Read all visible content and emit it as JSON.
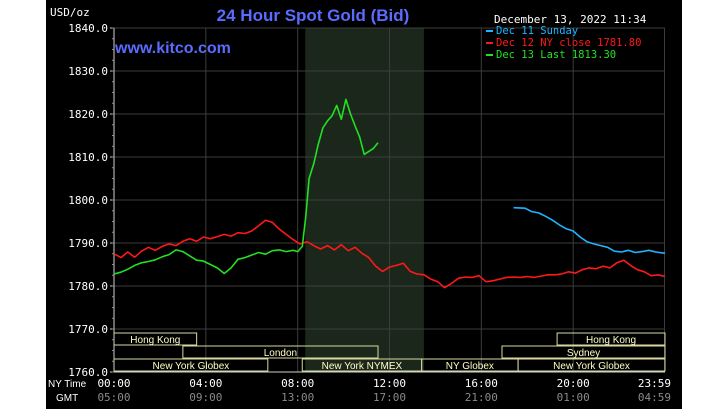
{
  "chart_data": {
    "type": "line",
    "title": "24 Hour Spot Gold (Bid)",
    "watermark": "www.kitco.com",
    "timestamp": "December 13, 2022 11:34",
    "ylabel": "USD/oz",
    "ylim": [
      1760,
      1840
    ],
    "yticks": [
      "1840.0",
      "1830.0",
      "1820.0",
      "1810.0",
      "1800.0",
      "1790.0",
      "1780.0",
      "1770.0",
      "1760.0"
    ],
    "x_range_hours": [
      0,
      24
    ],
    "ny_time_label": "NY Time",
    "gmt_label": "GMT",
    "x_ticks": [
      {
        "h": 0,
        "ny": "00:00",
        "gmt": "05:00"
      },
      {
        "h": 4,
        "ny": "04:00",
        "gmt": "09:00"
      },
      {
        "h": 8,
        "ny": "08:00",
        "gmt": "13:00"
      },
      {
        "h": 12,
        "ny": "12:00",
        "gmt": "17:00"
      },
      {
        "h": 16,
        "ny": "16:00",
        "gmt": "21:00"
      },
      {
        "h": 20,
        "ny": "20:00",
        "gmt": "01:00"
      },
      {
        "h": 23.98,
        "ny": "23:59",
        "gmt": "04:59"
      }
    ],
    "nymex_session_hours": [
      8.33,
      13.5
    ],
    "legend_position": "top-right",
    "series": [
      {
        "name": "Dec 11 Sunday",
        "color": "#1eb4ff",
        "points": [
          [
            17.4,
            1798.2
          ],
          [
            17.9,
            1798.1
          ],
          [
            18.2,
            1797.3
          ],
          [
            18.5,
            1797.0
          ],
          [
            18.8,
            1796.2
          ],
          [
            19.1,
            1795.3
          ],
          [
            19.4,
            1794.2
          ],
          [
            19.7,
            1793.3
          ],
          [
            20.0,
            1792.8
          ],
          [
            20.3,
            1791.4
          ],
          [
            20.6,
            1790.3
          ],
          [
            20.9,
            1789.8
          ],
          [
            21.2,
            1789.4
          ],
          [
            21.5,
            1789.0
          ],
          [
            21.8,
            1788.1
          ],
          [
            22.1,
            1787.9
          ],
          [
            22.4,
            1788.3
          ],
          [
            22.7,
            1787.8
          ],
          [
            23.0,
            1788.0
          ],
          [
            23.3,
            1788.3
          ],
          [
            23.6,
            1787.9
          ],
          [
            24.0,
            1787.6
          ]
        ]
      },
      {
        "name": "Dec 12 NY close 1781.80",
        "color": "#ff1818",
        "points": [
          [
            0,
            1787.5
          ],
          [
            0.3,
            1786.6
          ],
          [
            0.6,
            1787.9
          ],
          [
            0.9,
            1786.7
          ],
          [
            1.2,
            1788.1
          ],
          [
            1.5,
            1789.0
          ],
          [
            1.8,
            1788.3
          ],
          [
            2.1,
            1789.2
          ],
          [
            2.4,
            1789.8
          ],
          [
            2.7,
            1789.4
          ],
          [
            3.0,
            1790.4
          ],
          [
            3.3,
            1791.0
          ],
          [
            3.6,
            1790.4
          ],
          [
            3.9,
            1791.4
          ],
          [
            4.2,
            1791.0
          ],
          [
            4.5,
            1791.5
          ],
          [
            4.8,
            1792.0
          ],
          [
            5.1,
            1791.6
          ],
          [
            5.4,
            1792.4
          ],
          [
            5.7,
            1792.2
          ],
          [
            6.0,
            1792.8
          ],
          [
            6.3,
            1794.0
          ],
          [
            6.6,
            1795.3
          ],
          [
            6.9,
            1794.8
          ],
          [
            7.2,
            1793.2
          ],
          [
            7.5,
            1792.0
          ],
          [
            7.8,
            1790.8
          ],
          [
            8.1,
            1789.8
          ],
          [
            8.4,
            1790.3
          ],
          [
            8.7,
            1789.4
          ],
          [
            9.0,
            1788.6
          ],
          [
            9.3,
            1789.4
          ],
          [
            9.6,
            1788.4
          ],
          [
            9.9,
            1789.6
          ],
          [
            10.2,
            1788.2
          ],
          [
            10.5,
            1789.0
          ],
          [
            10.8,
            1787.6
          ],
          [
            11.1,
            1786.6
          ],
          [
            11.4,
            1784.6
          ],
          [
            11.7,
            1783.4
          ],
          [
            12.0,
            1784.4
          ],
          [
            12.3,
            1784.8
          ],
          [
            12.6,
            1785.3
          ],
          [
            12.9,
            1783.4
          ],
          [
            13.2,
            1782.8
          ],
          [
            13.5,
            1782.6
          ],
          [
            13.8,
            1781.6
          ],
          [
            14.1,
            1781.0
          ],
          [
            14.4,
            1779.6
          ],
          [
            14.7,
            1780.6
          ],
          [
            15.0,
            1781.8
          ],
          [
            15.3,
            1782.1
          ],
          [
            15.6,
            1782.0
          ],
          [
            15.9,
            1782.4
          ],
          [
            16.2,
            1781.0
          ],
          [
            16.5,
            1781.2
          ],
          [
            16.8,
            1781.6
          ],
          [
            17.1,
            1782.0
          ],
          [
            17.4,
            1782.1
          ],
          [
            17.7,
            1782.0
          ],
          [
            18.0,
            1782.2
          ],
          [
            18.3,
            1782.0
          ],
          [
            18.6,
            1782.3
          ],
          [
            18.9,
            1782.6
          ],
          [
            19.2,
            1782.6
          ],
          [
            19.5,
            1782.8
          ],
          [
            19.8,
            1783.3
          ],
          [
            20.1,
            1783.0
          ],
          [
            20.4,
            1783.8
          ],
          [
            20.7,
            1784.2
          ],
          [
            21.0,
            1784.0
          ],
          [
            21.3,
            1784.6
          ],
          [
            21.6,
            1784.2
          ],
          [
            21.9,
            1785.4
          ],
          [
            22.2,
            1786.0
          ],
          [
            22.5,
            1784.8
          ],
          [
            22.8,
            1783.8
          ],
          [
            23.1,
            1783.3
          ],
          [
            23.4,
            1782.4
          ],
          [
            23.7,
            1782.6
          ],
          [
            24.0,
            1782.2
          ]
        ]
      },
      {
        "name": "Dec 13 Last 1813.30",
        "color": "#22e022",
        "points": [
          [
            0,
            1782.8
          ],
          [
            0.3,
            1783.2
          ],
          [
            0.6,
            1783.9
          ],
          [
            0.9,
            1784.8
          ],
          [
            1.2,
            1785.4
          ],
          [
            1.5,
            1785.7
          ],
          [
            1.8,
            1786.1
          ],
          [
            2.1,
            1786.8
          ],
          [
            2.4,
            1787.3
          ],
          [
            2.7,
            1788.4
          ],
          [
            3.0,
            1788.0
          ],
          [
            3.3,
            1787.0
          ],
          [
            3.6,
            1786.0
          ],
          [
            3.9,
            1785.8
          ],
          [
            4.2,
            1785.0
          ],
          [
            4.5,
            1784.2
          ],
          [
            4.8,
            1782.9
          ],
          [
            5.1,
            1784.2
          ],
          [
            5.4,
            1786.2
          ],
          [
            5.7,
            1786.6
          ],
          [
            6.0,
            1787.2
          ],
          [
            6.3,
            1787.8
          ],
          [
            6.6,
            1787.4
          ],
          [
            6.9,
            1788.2
          ],
          [
            7.2,
            1788.4
          ],
          [
            7.5,
            1788.0
          ],
          [
            7.8,
            1788.3
          ],
          [
            8.0,
            1788.0
          ],
          [
            8.2,
            1789.2
          ],
          [
            8.35,
            1796.0
          ],
          [
            8.5,
            1805.0
          ],
          [
            8.7,
            1808.4
          ],
          [
            8.9,
            1813.0
          ],
          [
            9.1,
            1816.8
          ],
          [
            9.3,
            1818.4
          ],
          [
            9.5,
            1819.6
          ],
          [
            9.7,
            1822.0
          ],
          [
            9.9,
            1818.8
          ],
          [
            10.1,
            1823.4
          ],
          [
            10.3,
            1820.0
          ],
          [
            10.5,
            1817.2
          ],
          [
            10.7,
            1814.6
          ],
          [
            10.9,
            1810.6
          ],
          [
            11.1,
            1811.3
          ],
          [
            11.3,
            1812.0
          ],
          [
            11.5,
            1813.3
          ]
        ]
      }
    ],
    "session_rows": [
      {
        "row": 0,
        "labels": [
          {
            "name": "Hong Kong",
            "start": 0,
            "end": 3.6
          },
          {
            "name": "Hong Kong",
            "start": 19.3,
            "end": 24
          }
        ]
      },
      {
        "row": 1,
        "labels": [
          {
            "name": "London",
            "start": 3.0,
            "end": 11.5
          },
          {
            "name": "Sydney",
            "start": 16.9,
            "end": 24
          }
        ]
      },
      {
        "row": 2,
        "labels": [
          {
            "name": "New York Globex",
            "start": 0,
            "end": 6.7
          },
          {
            "name": "New York NYMEX",
            "start": 8.2,
            "end": 13.4
          },
          {
            "name": "NY Globex",
            "start": 13.4,
            "end": 17.6
          },
          {
            "name": "New York Globex",
            "start": 17.6,
            "end": 24
          }
        ]
      }
    ]
  }
}
